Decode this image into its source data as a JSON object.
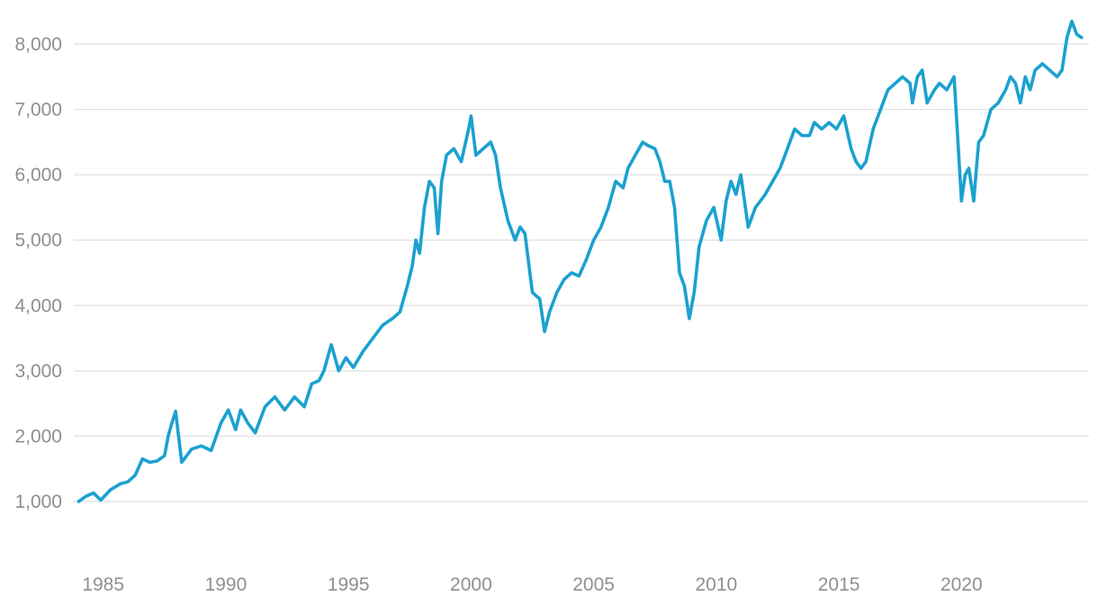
{
  "chart_data": {
    "type": "line",
    "title": "",
    "xlabel": "",
    "ylabel": "",
    "xlim": [
      1983.8,
      2025.2
    ],
    "ylim": [
      0,
      8400
    ],
    "yticks": [
      1000,
      2000,
      3000,
      4000,
      5000,
      6000,
      7000,
      8000
    ],
    "ytick_labels": [
      "1,000",
      "2,000",
      "3,000",
      "4,000",
      "5,000",
      "6,000",
      "7,000",
      "8,000"
    ],
    "xticks": [
      1985,
      1990,
      1995,
      2000,
      2005,
      2010,
      2015,
      2020
    ],
    "xtick_labels": [
      "1985",
      "1990",
      "1995",
      "2000",
      "2005",
      "2010",
      "2015",
      "2020"
    ],
    "grid": "horizontal",
    "legend": "none",
    "line_color": "#1ba1cf",
    "series": [
      {
        "x": [
          1984.0,
          1984.3,
          1984.6,
          1984.9,
          1985.3,
          1985.7,
          1986.0,
          1986.3,
          1986.6,
          1986.9,
          1987.2,
          1987.5,
          1987.65,
          1987.8,
          1987.95,
          1988.2,
          1988.6,
          1989.0,
          1989.4,
          1989.8,
          1990.1,
          1990.4,
          1990.6,
          1990.9,
          1991.2,
          1991.6,
          1992.0,
          1992.4,
          1992.8,
          1993.2,
          1993.5,
          1993.8,
          1994.0,
          1994.3,
          1994.6,
          1994.9,
          1995.2,
          1995.6,
          1996.0,
          1996.4,
          1996.8,
          1997.1,
          1997.4,
          1997.6,
          1997.75,
          1997.9,
          1998.1,
          1998.3,
          1998.5,
          1998.65,
          1998.8,
          1999.0,
          1999.3,
          1999.6,
          1999.9,
          2000.0,
          2000.2,
          2000.5,
          2000.8,
          2001.0,
          2001.2,
          2001.5,
          2001.8,
          2002.0,
          2002.2,
          2002.5,
          2002.8,
          2003.0,
          2003.2,
          2003.5,
          2003.8,
          2004.1,
          2004.4,
          2004.7,
          2005.0,
          2005.3,
          2005.6,
          2005.9,
          2006.2,
          2006.4,
          2006.7,
          2007.0,
          2007.2,
          2007.5,
          2007.7,
          2007.9,
          2008.1,
          2008.3,
          2008.5,
          2008.7,
          2008.9,
          2009.1,
          2009.3,
          2009.6,
          2009.9,
          2010.2,
          2010.4,
          2010.6,
          2010.8,
          2011.0,
          2011.3,
          2011.6,
          2011.8,
          2012.0,
          2012.3,
          2012.6,
          2012.9,
          2013.2,
          2013.5,
          2013.8,
          2014.0,
          2014.3,
          2014.6,
          2014.9,
          2015.2,
          2015.5,
          2015.7,
          2015.9,
          2016.1,
          2016.4,
          2016.7,
          2017.0,
          2017.3,
          2017.6,
          2017.9,
          2018.0,
          2018.2,
          2018.4,
          2018.6,
          2018.9,
          2019.1,
          2019.4,
          2019.7,
          2020.0,
          2020.15,
          2020.3,
          2020.5,
          2020.7,
          2020.9,
          2021.2,
          2021.5,
          2021.8,
          2022.0,
          2022.2,
          2022.4,
          2022.6,
          2022.8,
          2023.0,
          2023.3,
          2023.6,
          2023.9,
          2024.1,
          2024.3,
          2024.5,
          2024.7,
          2024.9
        ],
        "y": [
          1000,
          1080,
          1130,
          1020,
          1180,
          1270,
          1300,
          1400,
          1650,
          1600,
          1620,
          1700,
          2000,
          2200,
          2380,
          1600,
          1800,
          1850,
          1780,
          2200,
          2400,
          2100,
          2400,
          2200,
          2050,
          2450,
          2600,
          2400,
          2600,
          2450,
          2800,
          2850,
          3000,
          3400,
          3000,
          3200,
          3050,
          3300,
          3500,
          3700,
          3800,
          3900,
          4300,
          4600,
          5000,
          4800,
          5500,
          5900,
          5800,
          5100,
          5900,
          6300,
          6400,
          6200,
          6700,
          6900,
          6300,
          6400,
          6500,
          6300,
          5800,
          5300,
          5000,
          5200,
          5100,
          4200,
          4100,
          3600,
          3900,
          4200,
          4400,
          4500,
          4450,
          4700,
          5000,
          5200,
          5500,
          5900,
          5800,
          6100,
          6300,
          6500,
          6450,
          6400,
          6200,
          5900,
          5900,
          5500,
          4500,
          4300,
          3800,
          4200,
          4900,
          5300,
          5500,
          5000,
          5600,
          5900,
          5700,
          6000,
          5200,
          5500,
          5600,
          5700,
          5900,
          6100,
          6400,
          6700,
          6600,
          6600,
          6800,
          6700,
          6800,
          6700,
          6900,
          6400,
          6200,
          6100,
          6200,
          6700,
          7000,
          7300,
          7400,
          7500,
          7400,
          7100,
          7500,
          7600,
          7100,
          7300,
          7400,
          7300,
          7500,
          5600,
          6000,
          6100,
          5600,
          6500,
          6600,
          7000,
          7100,
          7300,
          7500,
          7400,
          7100,
          7500,
          7300,
          7600,
          7700,
          7600,
          7500,
          7600,
          8100,
          8350,
          8150,
          8100
        ]
      }
    ]
  }
}
